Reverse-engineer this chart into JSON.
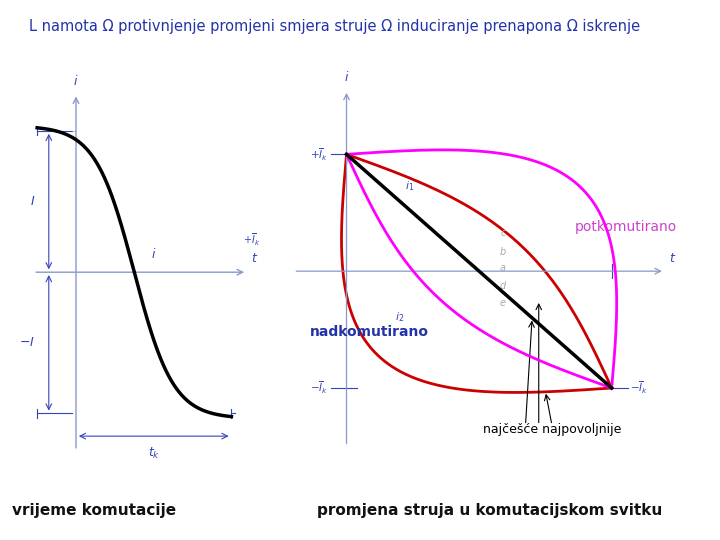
{
  "title": "L namota Ω protivnjenje promjeni smjera struje Ω induciranje prenapona Ω iskrenje",
  "bg_color": "#ffffff",
  "title_color": "#2233aa",
  "title_fontsize": 10.5,
  "left_curve_color": "#000000",
  "left_axis_color": "#8899cc",
  "left_annot_color": "#3344bb",
  "right_potko_color": "#ff00ff",
  "right_nadko_color": "#cc0000",
  "right_linear_color": "#000000",
  "right_axis_color": "#8899cc",
  "right_annot_color": "#3344bb",
  "right_potko_label_color": "#cc44cc",
  "right_nadko_label_color": "#2233aa",
  "right_najcesce_color": "#000000",
  "footer_left": "vrijeme komutacije",
  "footer_right": "promjena struja u komutacijskom svitku",
  "footer_color": "#111111",
  "footer_fontsize": 11
}
